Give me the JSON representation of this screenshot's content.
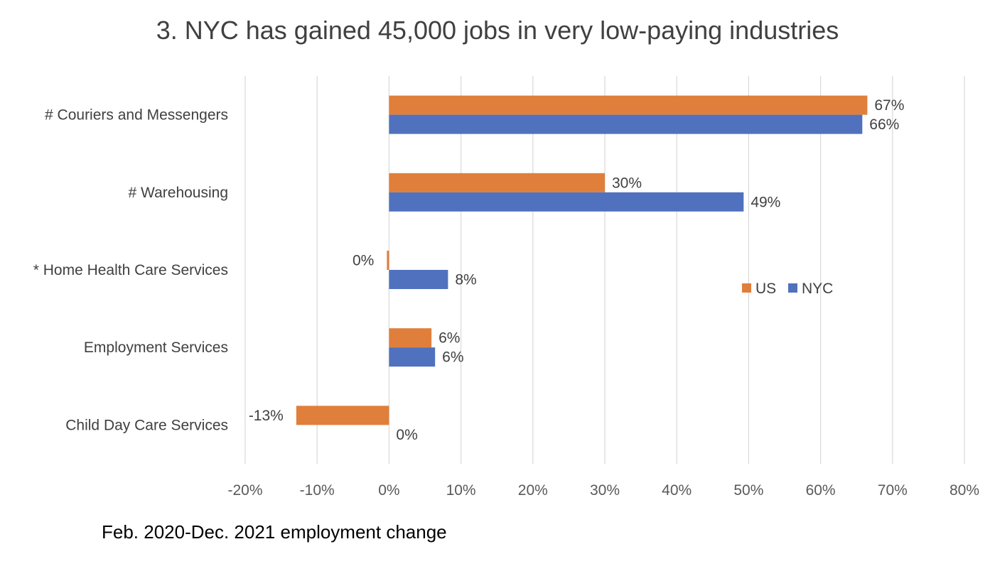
{
  "chart_data": {
    "type": "bar",
    "orientation": "horizontal",
    "title": "3. NYC has gained 45,000 jobs in very low-paying industries",
    "xlabel": "Feb. 2020-Dec. 2021  employment change",
    "ylabel": "",
    "categories": [
      "# Couriers and Messengers",
      "# Warehousing",
      "* Home Health Care Services",
      "Employment Services",
      "Child Day Care Services"
    ],
    "series": [
      {
        "name": "US",
        "color": "#E07E3C",
        "values": [
          66.5,
          30,
          -0.3,
          5.9,
          -12.9
        ],
        "labels": [
          "67%",
          "30%",
          "0%",
          "6%",
          "-13%"
        ]
      },
      {
        "name": "NYC",
        "color": "#4F71BE",
        "values": [
          65.8,
          49.3,
          8.2,
          6.4,
          0
        ],
        "labels": [
          "66%",
          "49%",
          "8%",
          "6%",
          "0%"
        ]
      }
    ],
    "xlim": [
      -20,
      80
    ],
    "x_ticks": [
      -20,
      -10,
      0,
      10,
      20,
      30,
      40,
      50,
      60,
      70,
      80
    ],
    "x_tick_labels": [
      "-20%",
      "-10%",
      "0%",
      "10%",
      "20%",
      "30%",
      "40%",
      "50%",
      "60%",
      "70%",
      "80%"
    ],
    "grid": true,
    "legend_position": "right"
  }
}
